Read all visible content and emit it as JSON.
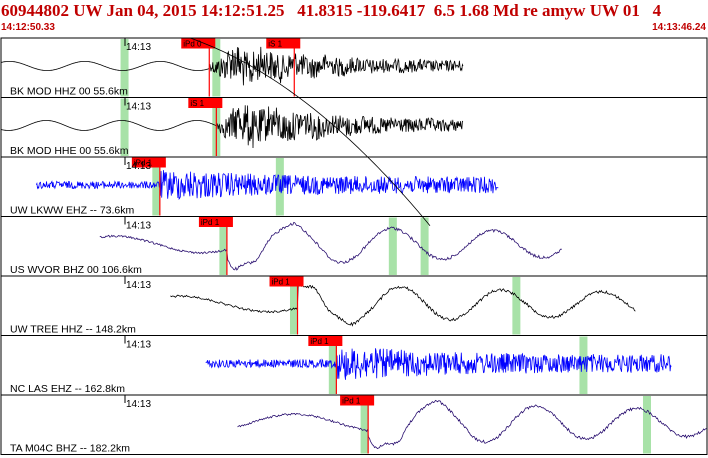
{
  "header": {
    "title": "60944802 UW Jan 04, 2015 14:12:51.25   41.8315 -119.6417  6.5 1.68 Md re amyw UW 01   4",
    "start_time": "14:12:50.33",
    "end_time": "14:13:46.24"
  },
  "colors": {
    "title_red": "#c00000",
    "pick_red": "#ff0000",
    "trace_black": "#000000",
    "trace_blue": "#0000ff",
    "trace_purple": "#2a1070",
    "window_green": "#9fdf9f",
    "panel_border": "#000000"
  },
  "channels": [
    {
      "label": "BK MOD HHZ 00 55.6km",
      "time_label": "14:13",
      "picks": [
        "iPd 0",
        "iS 1"
      ],
      "color": "black",
      "amplitude": 0.55,
      "trace_frac": [
        0.0,
        0.655
      ],
      "onset_frac": 0.295,
      "style": "emergent",
      "pre_wave": "sine",
      "green_frac": [
        0.175,
        0.305
      ]
    },
    {
      "label": "BK MOD HHE 00 55.6km",
      "time_label": "14:13",
      "picks": [
        "iS 1"
      ],
      "color": "black",
      "amplitude": 0.6,
      "trace_frac": [
        0.0,
        0.655
      ],
      "onset_frac": 0.305,
      "style": "emergent",
      "pre_wave": "sine",
      "green_frac": [
        0.175,
        0.305
      ]
    },
    {
      "label": "UW LKWW EHZ -- 73.6km",
      "time_label": "14:13",
      "picks": [
        "iPd 1"
      ],
      "color": "blue",
      "amplitude": 0.5,
      "trace_frac": [
        0.05,
        0.705
      ],
      "onset_frac": 0.225,
      "style": "burst",
      "pre_wave": "noise",
      "green_frac": [
        0.22,
        0.395
      ]
    },
    {
      "label": "US WVOR BHZ 00 106.6km",
      "time_label": "14:13",
      "picks": [
        "iPd 1"
      ],
      "color": "purple",
      "amplitude": 0.8,
      "trace_frac": [
        0.14,
        0.795
      ],
      "onset_frac": 0.32,
      "style": "long-period",
      "pre_wave": "slow",
      "green_frac": [
        0.315,
        0.555,
        0.6
      ]
    },
    {
      "label": "UW TREE HHZ -- 148.2km",
      "time_label": "14:13",
      "picks": [
        "iPd 1"
      ],
      "color": "black",
      "amplitude": 0.75,
      "trace_frac": [
        0.24,
        0.9
      ],
      "onset_frac": 0.42,
      "style": "long-period",
      "pre_wave": "slow",
      "green_frac": [
        0.415,
        0.73
      ]
    },
    {
      "label": "NC LAS EHZ -- 162.8km",
      "time_label": "14:13",
      "picks": [
        "iPd 1"
      ],
      "color": "blue",
      "amplitude": 0.55,
      "trace_frac": [
        0.29,
        0.95
      ],
      "onset_frac": 0.475,
      "style": "burst",
      "pre_wave": "noise",
      "green_frac": [
        0.47,
        0.825
      ]
    },
    {
      "label": "TA M04C BHZ -- 182.2km",
      "time_label": "14:13",
      "picks": [
        "iPd 1"
      ],
      "color": "purple",
      "amplitude": 0.85,
      "trace_frac": [
        0.335,
        1.0
      ],
      "onset_frac": 0.52,
      "style": "long-period",
      "pre_wave": "slow",
      "green_frac": [
        0.515,
        0.915
      ]
    }
  ]
}
